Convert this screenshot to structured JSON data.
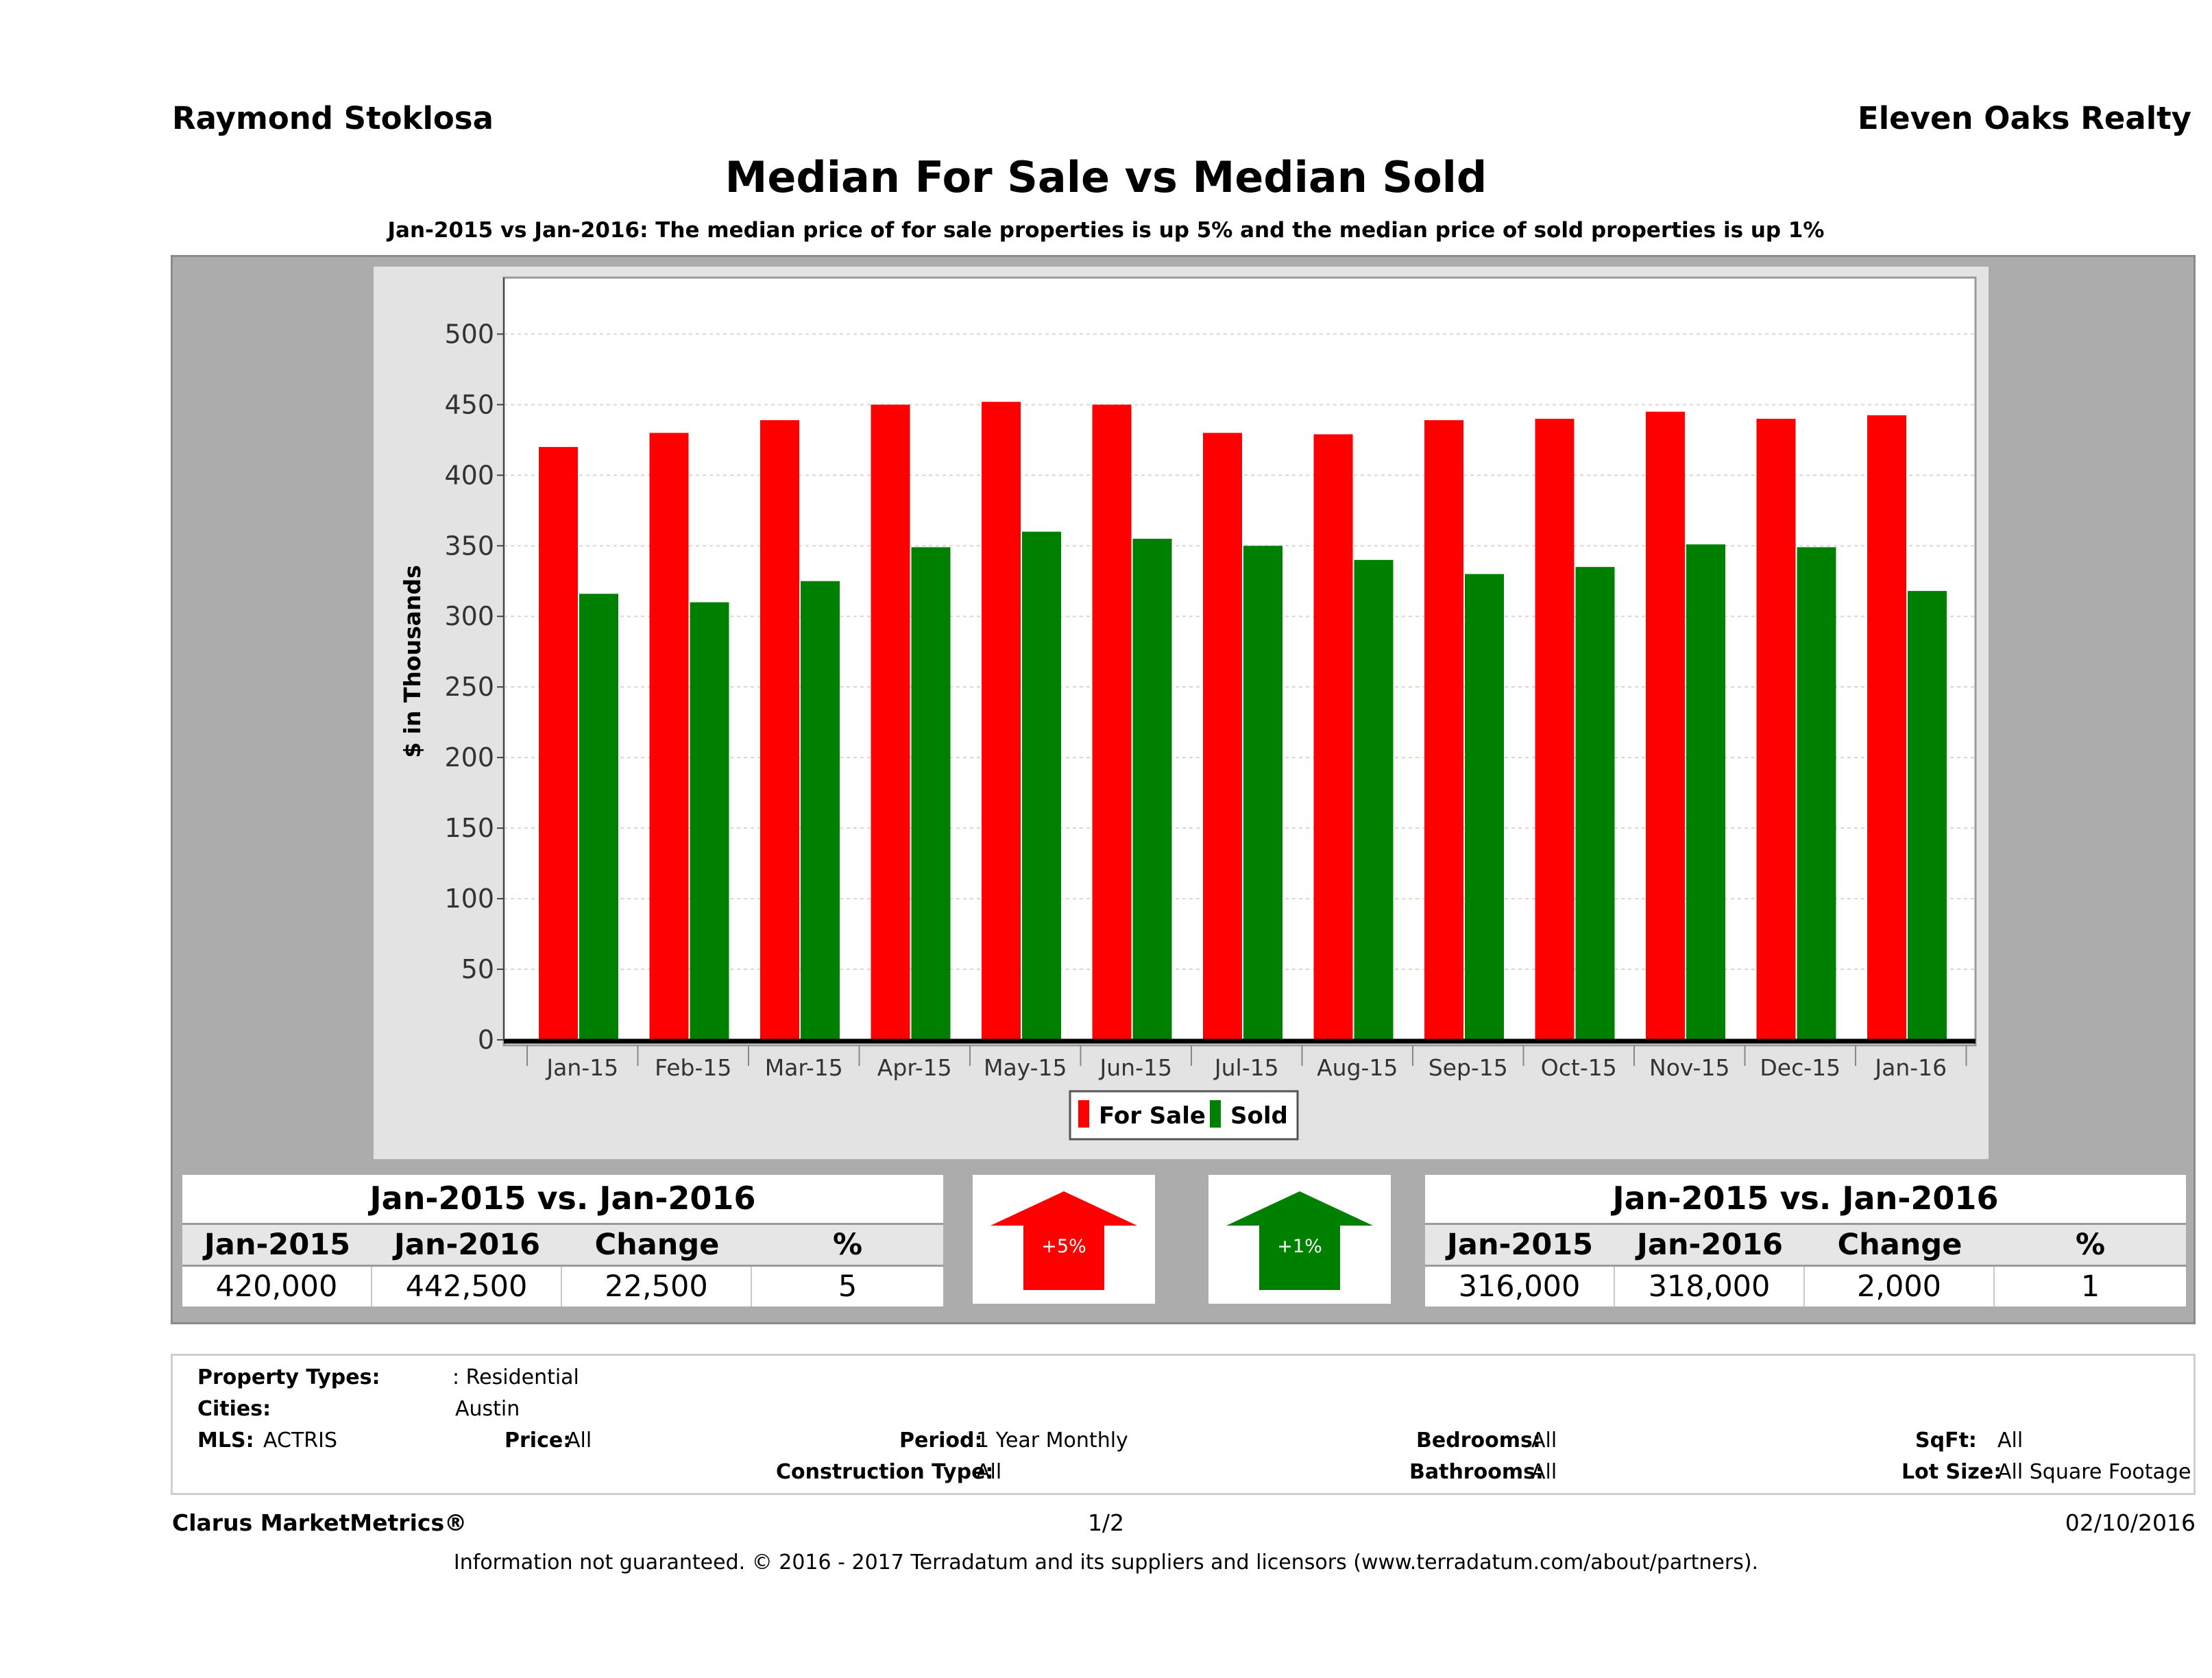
{
  "header": {
    "agent_name": "Raymond Stoklosa",
    "brokerage": "Eleven Oaks Realty"
  },
  "title": "Median For Sale vs Median Sold",
  "subtitle": "Jan-2015 vs Jan-2016: The median price of for sale properties is up 5% and the median price of sold properties is up 1%",
  "chart_data": {
    "type": "bar",
    "categories": [
      "Jan-15",
      "Feb-15",
      "Mar-15",
      "Apr-15",
      "May-15",
      "Jun-15",
      "Jul-15",
      "Aug-15",
      "Sep-15",
      "Oct-15",
      "Nov-15",
      "Dec-15",
      "Jan-16"
    ],
    "series": [
      {
        "name": "For Sale",
        "color": "#ff0000",
        "values": [
          420,
          430,
          439,
          450,
          452,
          450,
          430,
          429,
          439,
          440,
          445,
          440,
          442.5
        ]
      },
      {
        "name": "Sold",
        "color": "#008000",
        "values": [
          316,
          310,
          325,
          349,
          360,
          355,
          350,
          340,
          330,
          335,
          351,
          349,
          318
        ]
      }
    ],
    "ylabel": "$ in Thousands",
    "yticks": [
      0,
      50,
      100,
      150,
      200,
      250,
      300,
      350,
      400,
      450,
      500
    ],
    "ylim": [
      0,
      540
    ],
    "grid": true,
    "legend_position": "bottom-center"
  },
  "for_sale_table": {
    "title": "Jan-2015 vs. Jan-2016",
    "headers": [
      "Jan-2015",
      "Jan-2016",
      "Change",
      "%"
    ],
    "values": [
      "420,000",
      "442,500",
      "22,500",
      "5"
    ]
  },
  "for_sale_arrow": {
    "label": "+5%",
    "color": "#ff0000",
    "direction": "up"
  },
  "sold_arrow": {
    "label": "+1%",
    "color": "#008000",
    "direction": "up"
  },
  "sold_table": {
    "title": "Jan-2015 vs. Jan-2016",
    "headers": [
      "Jan-2015",
      "Jan-2016",
      "Change",
      "%"
    ],
    "values": [
      "316,000",
      "318,000",
      "2,000",
      "1"
    ]
  },
  "criteria": {
    "property_types_label": "Property Types:",
    "property_types_value": ": Residential",
    "cities_label": "Cities:",
    "cities_value": "Austin",
    "mls_label": "MLS:",
    "mls_value": "ACTRIS",
    "price_label": "Price:",
    "price_value": "All",
    "period_label": "Period:",
    "period_value": "1 Year Monthly",
    "construction_label": "Construction Type:",
    "construction_value": "All",
    "bedrooms_label": "Bedrooms:",
    "bedrooms_value": "All",
    "bathrooms_label": "Bathrooms:",
    "bathrooms_value": "All",
    "sqft_label": "SqFt:",
    "sqft_value": "All",
    "lotsize_label": "Lot Size:",
    "lotsize_value": "All Square Footage"
  },
  "footer": {
    "brand": "Clarus MarketMetrics®",
    "page": "1/2",
    "date": "02/10/2016",
    "disclaimer": "Information not guaranteed. © 2016 - 2017 Terradatum and its suppliers and licensors (www.terradatum.com/about/partners)."
  }
}
